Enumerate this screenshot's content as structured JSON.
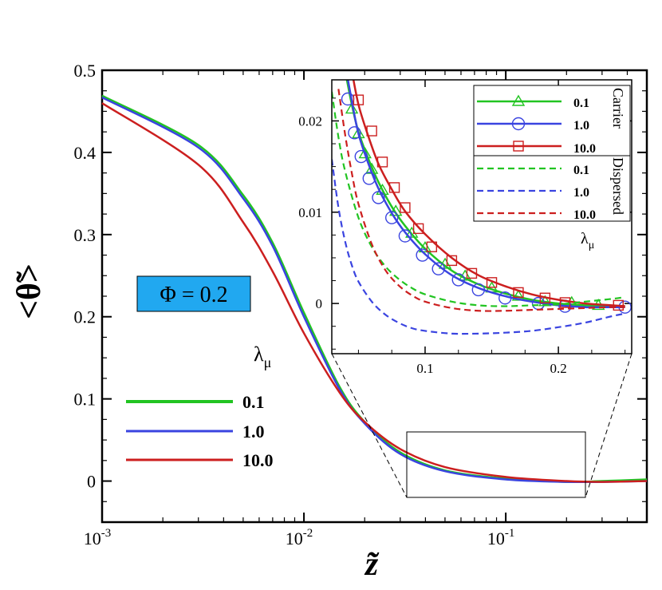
{
  "chart_data": [
    {
      "id": "main",
      "type": "line",
      "xscale": "log",
      "xlim": [
        0.001,
        0.5
      ],
      "ylim": [
        -0.05,
        0.5
      ],
      "xlabel": "z̃",
      "ylabel": "<θ̃>",
      "xticks": [
        {
          "v": 0.001,
          "base": "10",
          "exp": "-3"
        },
        {
          "v": 0.01,
          "base": "10",
          "exp": "-2"
        },
        {
          "v": 0.1,
          "base": "10",
          "exp": "-1"
        }
      ],
      "yticks": [
        {
          "v": 0,
          "label": "0"
        },
        {
          "v": 0.1,
          "label": "0.1"
        },
        {
          "v": 0.2,
          "label": "0.2"
        },
        {
          "v": 0.3,
          "label": "0.3"
        },
        {
          "v": 0.4,
          "label": "0.4"
        },
        {
          "v": 0.5,
          "label": "0.5"
        }
      ],
      "annotation": "Φ = 0.2",
      "legend_title": "λ",
      "legend_title_sub": "μ",
      "series": [
        {
          "name": "0.1",
          "color": "#22c422",
          "x": [
            0.001,
            0.003,
            0.005,
            0.007,
            0.01,
            0.015,
            0.02,
            0.03,
            0.05,
            0.1,
            0.2,
            0.3,
            0.5
          ],
          "y": [
            0.469,
            0.409,
            0.348,
            0.29,
            0.205,
            0.115,
            0.072,
            0.035,
            0.013,
            0.003,
            -0.001,
            0.0,
            0.002
          ]
        },
        {
          "name": "1.0",
          "color": "#3a44e0",
          "x": [
            0.001,
            0.003,
            0.005,
            0.007,
            0.01,
            0.015,
            0.02,
            0.03,
            0.05,
            0.1,
            0.2,
            0.3,
            0.5
          ],
          "y": [
            0.467,
            0.406,
            0.344,
            0.286,
            0.2,
            0.112,
            0.07,
            0.033,
            0.012,
            0.002,
            -0.001,
            -0.001,
            0.0
          ]
        },
        {
          "name": "10.0",
          "color": "#cc1f1f",
          "x": [
            0.001,
            0.003,
            0.005,
            0.007,
            0.01,
            0.015,
            0.02,
            0.03,
            0.05,
            0.1,
            0.2,
            0.3,
            0.5
          ],
          "y": [
            0.46,
            0.385,
            0.315,
            0.255,
            0.18,
            0.108,
            0.072,
            0.039,
            0.017,
            0.005,
            0.0,
            -0.001,
            0.0
          ]
        }
      ]
    },
    {
      "id": "inset",
      "type": "line",
      "xlim": [
        0.03,
        0.255
      ],
      "ylim": [
        -0.0055,
        0.0245
      ],
      "xticks": [
        {
          "v": 0.1,
          "label": "0.1"
        },
        {
          "v": 0.2,
          "label": "0.2"
        }
      ],
      "yticks": [
        {
          "v": 0,
          "label": "0"
        },
        {
          "v": 0.01,
          "label": "0.01"
        },
        {
          "v": 0.02,
          "label": "0.02"
        }
      ],
      "legend_header_carrier": "Carrier",
      "legend_header_dispersed": "Dispersed",
      "legend_title": "λ",
      "legend_title_sub": "μ",
      "series": [
        {
          "name": "0.1",
          "phase": "carrier",
          "color": "#22c422",
          "marker": "triangle",
          "dash": false,
          "x": [
            0.04,
            0.045,
            0.05,
            0.057,
            0.065,
            0.075,
            0.085,
            0.1,
            0.12,
            0.14,
            0.16,
            0.18,
            0.2,
            0.22,
            0.24,
            0.25
          ],
          "y": [
            0.0255,
            0.0218,
            0.0188,
            0.016,
            0.0133,
            0.0106,
            0.0085,
            0.006,
            0.0036,
            0.0021,
            0.0011,
            0.0004,
            0.0,
            -0.0002,
            -0.0003,
            -0.0003
          ],
          "marker_x": [
            0.045,
            0.05,
            0.055,
            0.06,
            0.068,
            0.078,
            0.09,
            0.1,
            0.115,
            0.13,
            0.15,
            0.17,
            0.19,
            0.21,
            0.23
          ],
          "marker_y": [
            0.0213,
            0.0186,
            0.0164,
            0.0147,
            0.0124,
            0.0101,
            0.0077,
            0.0061,
            0.0043,
            0.003,
            0.0017,
            0.0008,
            0.0002,
            0.0001,
            -0.0002
          ]
        },
        {
          "name": "1.0",
          "phase": "carrier",
          "color": "#3a44e0",
          "marker": "circle",
          "dash": false,
          "x": [
            0.04,
            0.045,
            0.05,
            0.057,
            0.065,
            0.075,
            0.085,
            0.1,
            0.12,
            0.14,
            0.16,
            0.18,
            0.2,
            0.22,
            0.24,
            0.25
          ],
          "y": [
            0.0262,
            0.0222,
            0.0186,
            0.0155,
            0.0126,
            0.0099,
            0.0078,
            0.0054,
            0.0031,
            0.0017,
            0.0008,
            0.0002,
            -0.0002,
            -0.0004,
            -0.0004,
            -0.0004
          ],
          "marker_x": [
            0.042,
            0.047,
            0.052,
            0.058,
            0.065,
            0.075,
            0.085,
            0.098,
            0.11,
            0.125,
            0.14,
            0.16,
            0.185,
            0.205,
            0.25
          ],
          "marker_y": [
            0.0224,
            0.0187,
            0.0161,
            0.0137,
            0.0116,
            0.0094,
            0.0074,
            0.0053,
            0.0038,
            0.0026,
            0.0015,
            0.0006,
            0.0,
            -0.0003,
            -0.0004
          ]
        },
        {
          "name": "10.0",
          "phase": "carrier",
          "color": "#cc1f1f",
          "marker": "square",
          "dash": false,
          "x": [
            0.045,
            0.05,
            0.057,
            0.065,
            0.075,
            0.085,
            0.1,
            0.12,
            0.14,
            0.16,
            0.18,
            0.2,
            0.22,
            0.24,
            0.25
          ],
          "y": [
            0.0255,
            0.0218,
            0.0185,
            0.0153,
            0.0125,
            0.0101,
            0.0076,
            0.005,
            0.0031,
            0.0019,
            0.001,
            0.0004,
            0.0,
            -0.0002,
            -0.0003
          ],
          "marker_x": [
            0.05,
            0.06,
            0.068,
            0.077,
            0.085,
            0.095,
            0.105,
            0.12,
            0.135,
            0.15,
            0.17,
            0.19,
            0.205,
            0.245
          ],
          "marker_y": [
            0.0223,
            0.0189,
            0.0155,
            0.0127,
            0.0105,
            0.0082,
            0.0062,
            0.0047,
            0.0033,
            0.0023,
            0.0012,
            0.0006,
            0.0001,
            -0.0002
          ]
        },
        {
          "name": "0.1",
          "phase": "dispersed",
          "color": "#22c422",
          "marker": "none",
          "dash": true,
          "x": [
            0.03,
            0.035,
            0.04,
            0.05,
            0.06,
            0.07,
            0.08,
            0.09,
            0.1,
            0.12,
            0.14,
            0.16,
            0.18,
            0.2,
            0.22,
            0.24,
            0.25
          ],
          "y": [
            0.0232,
            0.0182,
            0.0145,
            0.0094,
            0.0062,
            0.0041,
            0.0027,
            0.0017,
            0.001,
            0.0002,
            -0.0002,
            -0.0003,
            -0.0002,
            -0.0001,
            0.0002,
            0.0005,
            0.0007
          ]
        },
        {
          "name": "1.0",
          "phase": "dispersed",
          "color": "#3a44e0",
          "marker": "none",
          "dash": true,
          "x": [
            0.03,
            0.035,
            0.04,
            0.045,
            0.05,
            0.06,
            0.07,
            0.08,
            0.09,
            0.1,
            0.12,
            0.14,
            0.16,
            0.18,
            0.2,
            0.22,
            0.24,
            0.25
          ],
          "y": [
            0.0158,
            0.0105,
            0.0068,
            0.0042,
            0.0024,
            0.0002,
            -0.0012,
            -0.0021,
            -0.0027,
            -0.003,
            -0.0033,
            -0.0033,
            -0.0032,
            -0.003,
            -0.0026,
            -0.0021,
            -0.0014,
            -0.0011
          ]
        },
        {
          "name": "10.0",
          "phase": "dispersed",
          "color": "#cc1f1f",
          "marker": "none",
          "dash": true,
          "x": [
            0.035,
            0.04,
            0.045,
            0.05,
            0.06,
            0.07,
            0.08,
            0.09,
            0.1,
            0.12,
            0.14,
            0.16,
            0.18,
            0.2,
            0.22,
            0.24,
            0.25
          ],
          "y": [
            0.0235,
            0.0185,
            0.0143,
            0.0109,
            0.0065,
            0.0037,
            0.002,
            0.0009,
            0.0002,
            -0.0005,
            -0.0008,
            -0.0008,
            -0.0007,
            -0.0006,
            -0.0005,
            -0.0004,
            -0.0004
          ]
        }
      ]
    }
  ]
}
